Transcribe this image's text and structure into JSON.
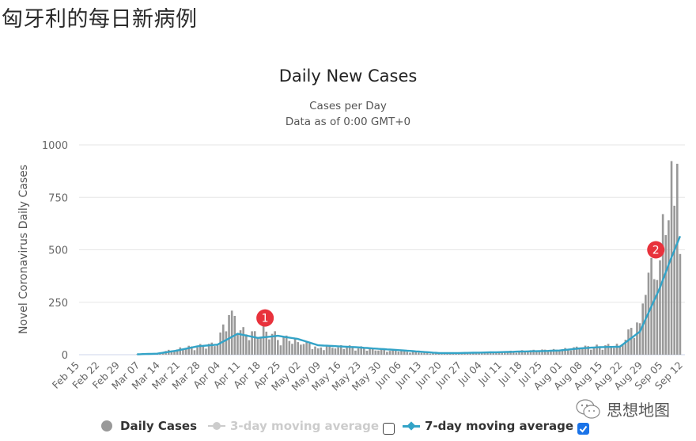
{
  "page": {
    "title": "匈牙利的每日新病例"
  },
  "chart_data": {
    "type": "bar",
    "title": "Daily New Cases",
    "subtitle": [
      "Cases per Day",
      "Data as of 0:00 GMT+0"
    ],
    "xlabel": "",
    "ylabel": "Novel Coronavirus Daily Cases",
    "ylim": [
      0,
      1000
    ],
    "yticks": [
      0,
      250,
      500,
      750,
      1000
    ],
    "grid": true,
    "legend_position": "bottom",
    "x_tick_labels": [
      "Feb 15",
      "Feb 22",
      "Feb 29",
      "Mar 07",
      "Mar 14",
      "Mar 21",
      "Mar 28",
      "Apr 04",
      "Apr 11",
      "Apr 18",
      "Apr 25",
      "May 02",
      "May 09",
      "May 16",
      "May 23",
      "May 30",
      "Jun 06",
      "Jun 13",
      "Jun 20",
      "Jun 27",
      "Jul 04",
      "Jul 11",
      "Jul 18",
      "Jul 25",
      "Aug 01",
      "Aug 08",
      "Aug 15",
      "Aug 22",
      "Aug 29",
      "Sep 05",
      "Sep 12"
    ],
    "x_start": "Feb 15",
    "series": [
      {
        "name": "Daily Cases",
        "type": "bar",
        "color": "#999999",
        "weekly_samples": {
          "Mar 07": 2,
          "Mar 14": 6,
          "Mar 21": 25,
          "Mar 28": 35,
          "Apr 04": 45,
          "Apr 09": 210,
          "Apr 11": 100,
          "Apr 18": 80,
          "Apr 21": 110,
          "Apr 25": 70,
          "May 02": 60,
          "May 09": 30,
          "May 16": 35,
          "May 23": 30,
          "May 30": 20,
          "Jun 06": 15,
          "Jun 13": 10,
          "Jun 20": 5,
          "Jun 27": 8,
          "Jul 04": 10,
          "Jul 11": 12,
          "Jul 18": 15,
          "Jul 25": 18,
          "Aug 01": 20,
          "Aug 08": 30,
          "Aug 15": 35,
          "Aug 22": 40,
          "Aug 29": 150,
          "Aug 31": 285,
          "Sep 03": 360,
          "Sep 05": 450,
          "Sep 07": 570,
          "Sep 10": 710,
          "Sep 11": 910,
          "Sep 12": 480
        }
      },
      {
        "name": "3-day moving average",
        "type": "line",
        "color": "#cccccc",
        "visible": false
      },
      {
        "name": "7-day moving average",
        "type": "line",
        "color": "#33a3c7",
        "visible": true,
        "weekly_samples": {
          "Mar 07": 2,
          "Mar 14": 5,
          "Mar 21": 20,
          "Mar 28": 40,
          "Apr 04": 48,
          "Apr 11": 100,
          "Apr 18": 80,
          "Apr 25": 90,
          "May 02": 75,
          "May 09": 45,
          "May 16": 40,
          "May 23": 35,
          "May 30": 28,
          "Jun 06": 22,
          "Jun 13": 15,
          "Jun 20": 8,
          "Jun 27": 8,
          "Jul 04": 10,
          "Jul 11": 12,
          "Jul 18": 15,
          "Jul 25": 17,
          "Aug 01": 20,
          "Aug 08": 30,
          "Aug 15": 36,
          "Aug 22": 38,
          "Aug 29": 110,
          "Sep 05": 320,
          "Sep 08": 430,
          "Sep 12": 565
        }
      }
    ],
    "annotations": [
      {
        "label": "1",
        "x": "Apr 20",
        "y": 175,
        "color": "#e8323c"
      },
      {
        "label": "2",
        "x": "Sep 03",
        "y": 500,
        "color": "#e8323c"
      }
    ]
  },
  "legend": {
    "items": [
      {
        "label": "Daily Cases",
        "active": true
      },
      {
        "label": "3-day moving average",
        "active": false,
        "checked": false
      },
      {
        "label": "7-day moving average",
        "active": true,
        "checked": true
      }
    ]
  },
  "watermark": {
    "text": "思想地图"
  }
}
